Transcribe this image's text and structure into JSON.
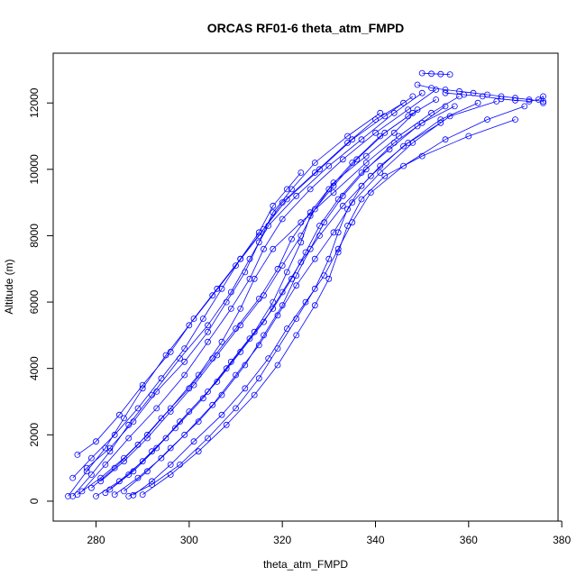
{
  "chart_data": {
    "type": "scatter",
    "title": "ORCAS RF01-6 theta_atm_FMPD",
    "xlabel": "theta_atm_FMPD",
    "ylabel": "Altitude (m)",
    "xlim": [
      270.8,
      379.2
    ],
    "ylim": [
      -600,
      13500
    ],
    "xticks": [
      280,
      300,
      320,
      340,
      360,
      380
    ],
    "yticks": [
      0,
      2000,
      4000,
      6000,
      8000,
      10000,
      12000
    ],
    "grid": false,
    "legend": "none",
    "series": [
      {
        "values": [
          [
            275,
            150
          ],
          [
            279,
            800
          ],
          [
            283,
            1500
          ],
          [
            287,
            2300
          ],
          [
            292,
            3200
          ],
          [
            298,
            4300
          ],
          [
            304,
            5300
          ],
          [
            309,
            6300
          ],
          [
            313,
            7300
          ],
          [
            317,
            8300
          ],
          [
            323,
            9200
          ],
          [
            330,
            10100
          ],
          [
            337,
            10900
          ],
          [
            344,
            11700
          ],
          [
            350,
            12300
          ]
        ]
      },
      {
        "values": [
          [
            276,
            200
          ],
          [
            281,
            700
          ],
          [
            286,
            1300
          ],
          [
            291,
            2000
          ],
          [
            296,
            2800
          ],
          [
            302,
            3800
          ],
          [
            307,
            4800
          ],
          [
            311,
            5800
          ],
          [
            314,
            6700
          ],
          [
            318,
            7600
          ],
          [
            324,
            8400
          ],
          [
            331,
            9300
          ],
          [
            338,
            10200
          ],
          [
            345,
            11000
          ],
          [
            352,
            11700
          ],
          [
            358,
            12200
          ]
        ]
      },
      {
        "values": [
          [
            280,
            150
          ],
          [
            285,
            600
          ],
          [
            290,
            1200
          ],
          [
            295,
            1900
          ],
          [
            300,
            2700
          ],
          [
            306,
            3600
          ],
          [
            311,
            4500
          ],
          [
            316,
            5400
          ],
          [
            320,
            6300
          ],
          [
            324,
            7200
          ],
          [
            328,
            8000
          ],
          [
            333,
            8900
          ],
          [
            339,
            9800
          ],
          [
            346,
            10700
          ],
          [
            354,
            11500
          ],
          [
            362,
            12000
          ]
        ]
      },
      {
        "values": [
          [
            284,
            200
          ],
          [
            289,
            700
          ],
          [
            294,
            1300
          ],
          [
            299,
            2000
          ],
          [
            305,
            2900
          ],
          [
            310,
            3800
          ],
          [
            315,
            4700
          ],
          [
            319,
            5600
          ],
          [
            323,
            6500
          ],
          [
            327,
            7300
          ],
          [
            331,
            8100
          ],
          [
            335,
            9000
          ],
          [
            341,
            9900
          ],
          [
            348,
            10800
          ],
          [
            356,
            11600
          ],
          [
            366,
            12050
          ]
        ]
      },
      {
        "values": [
          [
            288,
            180
          ],
          [
            292,
            600
          ],
          [
            296,
            1100
          ],
          [
            301,
            1800
          ],
          [
            307,
            2600
          ],
          [
            312,
            3400
          ],
          [
            317,
            4300
          ],
          [
            321,
            5200
          ],
          [
            325,
            6000
          ],
          [
            329,
            6800
          ],
          [
            332,
            7600
          ],
          [
            335,
            8400
          ],
          [
            339,
            9300
          ],
          [
            346,
            10100
          ],
          [
            355,
            10900
          ],
          [
            364,
            11500
          ],
          [
            372,
            11900
          ]
        ]
      },
      {
        "values": [
          [
            290,
            200
          ],
          [
            296,
            800
          ],
          [
            302,
            1500
          ],
          [
            308,
            2300
          ],
          [
            314,
            3200
          ],
          [
            319,
            4100
          ],
          [
            323,
            5000
          ],
          [
            327,
            5900
          ],
          [
            330,
            6700
          ],
          [
            332,
            7500
          ],
          [
            334,
            8300
          ],
          [
            337,
            9100
          ],
          [
            342,
            9800
          ],
          [
            350,
            10400
          ],
          [
            360,
            11000
          ],
          [
            370,
            11500
          ]
        ]
      },
      {
        "values": [
          [
            274,
            150
          ],
          [
            278,
            900
          ],
          [
            282,
            1600
          ],
          [
            286,
            2500
          ],
          [
            290,
            3400
          ],
          [
            295,
            4400
          ],
          [
            300,
            5300
          ],
          [
            305,
            6200
          ],
          [
            310,
            7100
          ],
          [
            315,
            8000
          ],
          [
            320,
            9000
          ],
          [
            327,
            9900
          ],
          [
            334,
            10800
          ],
          [
            340,
            11500
          ],
          [
            346,
            12000
          ]
        ]
      },
      {
        "values": [
          [
            277,
            300
          ],
          [
            282,
            1100
          ],
          [
            287,
            1900
          ],
          [
            293,
            2800
          ],
          [
            299,
            3800
          ],
          [
            304,
            4800
          ],
          [
            309,
            5800
          ],
          [
            313,
            6700
          ],
          [
            316,
            7600
          ],
          [
            320,
            8500
          ],
          [
            326,
            9400
          ],
          [
            333,
            10300
          ],
          [
            340,
            11100
          ],
          [
            347,
            11800
          ],
          [
            353,
            12400
          ]
        ]
      },
      {
        "values": [
          [
            279,
            400
          ],
          [
            284,
            1000
          ],
          [
            289,
            1700
          ],
          [
            294,
            2500
          ],
          [
            300,
            3400
          ],
          [
            305,
            4300
          ],
          [
            310,
            5200
          ],
          [
            315,
            6100
          ],
          [
            319,
            7000
          ],
          [
            322,
            7900
          ],
          [
            326,
            8700
          ],
          [
            331,
            9600
          ],
          [
            338,
            10400
          ],
          [
            344,
            11100
          ],
          [
            349,
            11800
          ]
        ]
      },
      {
        "values": [
          [
            282,
            250
          ],
          [
            287,
            800
          ],
          [
            292,
            1500
          ],
          [
            297,
            2200
          ],
          [
            303,
            3100
          ],
          [
            308,
            4000
          ],
          [
            313,
            4900
          ],
          [
            318,
            5800
          ],
          [
            322,
            6700
          ],
          [
            325,
            7500
          ],
          [
            328,
            8300
          ],
          [
            332,
            9100
          ],
          [
            337,
            9900
          ],
          [
            343,
            10600
          ],
          [
            349,
            11300
          ],
          [
            355,
            11900
          ]
        ]
      },
      {
        "values": [
          [
            286,
            300
          ],
          [
            291,
            900
          ],
          [
            296,
            1600
          ],
          [
            302,
            2400
          ],
          [
            307,
            3200
          ],
          [
            312,
            4100
          ],
          [
            316,
            5000
          ],
          [
            320,
            5900
          ],
          [
            323,
            6800
          ],
          [
            326,
            7600
          ],
          [
            329,
            8400
          ],
          [
            333,
            9200
          ],
          [
            338,
            10000
          ],
          [
            344,
            10800
          ],
          [
            350,
            11400
          ],
          [
            357,
            11900
          ]
        ]
      },
      {
        "values": [
          [
            276,
            1400
          ],
          [
            280,
            1800
          ],
          [
            285,
            2600
          ],
          [
            290,
            3500
          ],
          [
            296,
            4500
          ],
          [
            301,
            5500
          ],
          [
            306,
            6400
          ],
          [
            311,
            7300
          ],
          [
            316,
            8200
          ],
          [
            321,
            9100
          ],
          [
            328,
            10000
          ],
          [
            335,
            10900
          ],
          [
            342,
            11600
          ],
          [
            348,
            12200
          ]
        ]
      },
      {
        "values": [
          [
            278,
            1000
          ],
          [
            283,
            1600
          ],
          [
            288,
            2400
          ],
          [
            293,
            3300
          ],
          [
            299,
            4200
          ],
          [
            304,
            5100
          ],
          [
            308,
            6000
          ],
          [
            312,
            6900
          ],
          [
            315,
            7800
          ],
          [
            318,
            8700
          ],
          [
            322,
            9400
          ],
          [
            327,
            10200
          ],
          [
            334,
            11000
          ],
          [
            341,
            11700
          ]
        ]
      },
      {
        "values": [
          [
            281,
            600
          ],
          [
            286,
            1200
          ],
          [
            291,
            1900
          ],
          [
            296,
            2700
          ],
          [
            301,
            3500
          ],
          [
            306,
            4400
          ],
          [
            311,
            5300
          ],
          [
            316,
            6200
          ],
          [
            320,
            7100
          ],
          [
            324,
            8000
          ],
          [
            327,
            8800
          ],
          [
            331,
            9500
          ],
          [
            336,
            10300
          ],
          [
            342,
            11100
          ],
          [
            348,
            11700
          ]
        ]
      },
      {
        "values": [
          [
            283,
            350
          ],
          [
            288,
            900
          ],
          [
            293,
            1600
          ],
          [
            298,
            2400
          ],
          [
            304,
            3300
          ],
          [
            309,
            4200
          ],
          [
            314,
            5100
          ],
          [
            318,
            6000
          ],
          [
            321,
            6900
          ],
          [
            324,
            7800
          ],
          [
            326,
            8600
          ],
          [
            330,
            9400
          ],
          [
            335,
            10200
          ],
          [
            341,
            11000
          ],
          [
            347,
            11600
          ],
          [
            353,
            12100
          ]
        ]
      },
      {
        "values": [
          [
            275,
            700
          ],
          [
            279,
            1300
          ],
          [
            284,
            2000
          ],
          [
            289,
            2800
          ],
          [
            294,
            3700
          ],
          [
            299,
            4600
          ],
          [
            303,
            5500
          ],
          [
            307,
            6400
          ],
          [
            311,
            7300
          ],
          [
            315,
            8100
          ],
          [
            318,
            8900
          ],
          [
            321,
            9400
          ],
          [
            324,
            9900
          ]
        ]
      },
      {
        "values": [
          [
            287,
            150
          ],
          [
            292,
            500
          ],
          [
            298,
            1100
          ],
          [
            304,
            1900
          ],
          [
            310,
            2800
          ],
          [
            315,
            3700
          ],
          [
            319,
            4600
          ],
          [
            323,
            5500
          ],
          [
            327,
            6400
          ],
          [
            330,
            7300
          ],
          [
            332,
            8100
          ],
          [
            334,
            8800
          ],
          [
            337,
            9500
          ],
          [
            341,
            10100
          ],
          [
            347,
            10800
          ],
          [
            354,
            11400
          ]
        ]
      },
      {
        "values": [
          [
            350,
            12900
          ],
          [
            352,
            12880
          ],
          [
            354,
            12870
          ],
          [
            356,
            12860
          ]
        ]
      },
      {
        "values": [
          [
            349,
            12550
          ],
          [
            352,
            12450
          ],
          [
            355,
            12400
          ],
          [
            358,
            12350
          ],
          [
            361,
            12300
          ],
          [
            364,
            12250
          ],
          [
            367,
            12200
          ],
          [
            370,
            12150
          ],
          [
            373,
            12100
          ],
          [
            376,
            12050
          ]
        ]
      },
      {
        "values": [
          [
            355,
            12300
          ],
          [
            359,
            12250
          ],
          [
            363,
            12200
          ],
          [
            367,
            12120
          ],
          [
            370,
            12080
          ],
          [
            373,
            12050
          ],
          [
            375,
            12100
          ],
          [
            376,
            12200
          ],
          [
            376,
            12000
          ]
        ]
      }
    ]
  }
}
